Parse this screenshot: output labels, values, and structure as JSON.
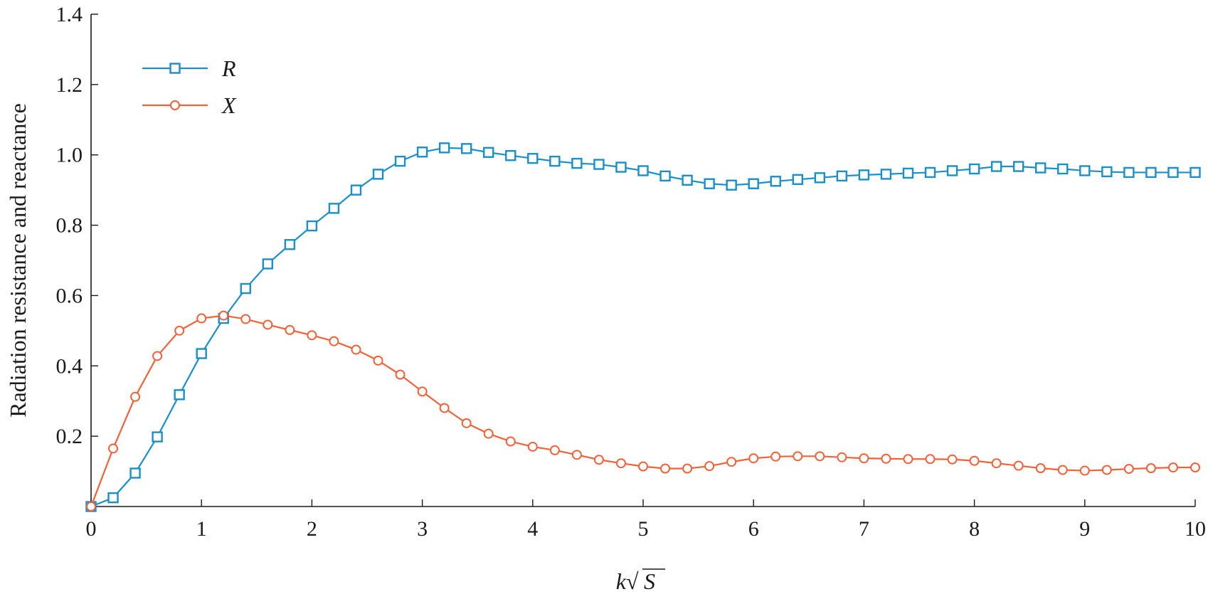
{
  "chart_data": {
    "type": "line",
    "xlabel_prefix": "k",
    "xlabel_radical": "√",
    "xlabel_radicand": "S",
    "ylabel": "Radiation resistance and reactance",
    "xlim": [
      0,
      10
    ],
    "ylim": [
      0,
      1.4
    ],
    "xticks": [
      0,
      1,
      2,
      3,
      4,
      5,
      6,
      7,
      8,
      9,
      10
    ],
    "xtick_labels": [
      "0",
      "1",
      "2",
      "3",
      "4",
      "5",
      "6",
      "7",
      "8",
      "9",
      "10"
    ],
    "yticks": [
      0.2,
      0.4,
      0.6,
      0.8,
      1.0,
      1.2,
      1.4
    ],
    "ytick_labels": [
      "0.2",
      "0.4",
      "0.6",
      "0.8",
      "1.0",
      "1.2",
      "1.4"
    ],
    "grid": false,
    "legend_position": "top-left",
    "x": [
      0,
      0.2,
      0.4,
      0.6,
      0.8,
      1.0,
      1.2,
      1.4,
      1.6,
      1.8,
      2.0,
      2.2,
      2.4,
      2.6,
      2.8,
      3.0,
      3.2,
      3.4,
      3.6,
      3.8,
      4.0,
      4.2,
      4.4,
      4.6,
      4.8,
      5.0,
      5.2,
      5.4,
      5.6,
      5.8,
      6.0,
      6.2,
      6.4,
      6.6,
      6.8,
      7.0,
      7.2,
      7.4,
      7.6,
      7.8,
      8.0,
      8.2,
      8.4,
      8.6,
      8.8,
      9.0,
      9.2,
      9.4,
      9.6,
      9.8,
      10.0
    ],
    "series": [
      {
        "name": "R",
        "marker": "square",
        "color": "#1a8fc9",
        "values": [
          0.0,
          0.025,
          0.095,
          0.198,
          0.318,
          0.435,
          0.535,
          0.62,
          0.69,
          0.745,
          0.798,
          0.848,
          0.9,
          0.945,
          0.982,
          1.008,
          1.02,
          1.018,
          1.007,
          0.998,
          0.99,
          0.982,
          0.976,
          0.973,
          0.965,
          0.955,
          0.94,
          0.928,
          0.918,
          0.914,
          0.918,
          0.925,
          0.93,
          0.935,
          0.94,
          0.943,
          0.945,
          0.948,
          0.95,
          0.955,
          0.96,
          0.967,
          0.967,
          0.963,
          0.96,
          0.955,
          0.952,
          0.95,
          0.95,
          0.95,
          0.95
        ]
      },
      {
        "name": "X",
        "marker": "circle",
        "color": "#f0623a",
        "values": [
          0.0,
          0.165,
          0.312,
          0.428,
          0.5,
          0.535,
          0.543,
          0.533,
          0.517,
          0.502,
          0.487,
          0.47,
          0.446,
          0.415,
          0.375,
          0.327,
          0.28,
          0.237,
          0.207,
          0.185,
          0.17,
          0.16,
          0.147,
          0.133,
          0.123,
          0.114,
          0.108,
          0.108,
          0.115,
          0.127,
          0.137,
          0.142,
          0.143,
          0.143,
          0.14,
          0.137,
          0.136,
          0.135,
          0.135,
          0.134,
          0.13,
          0.123,
          0.116,
          0.109,
          0.104,
          0.102,
          0.104,
          0.107,
          0.109,
          0.111,
          0.111
        ]
      }
    ]
  }
}
